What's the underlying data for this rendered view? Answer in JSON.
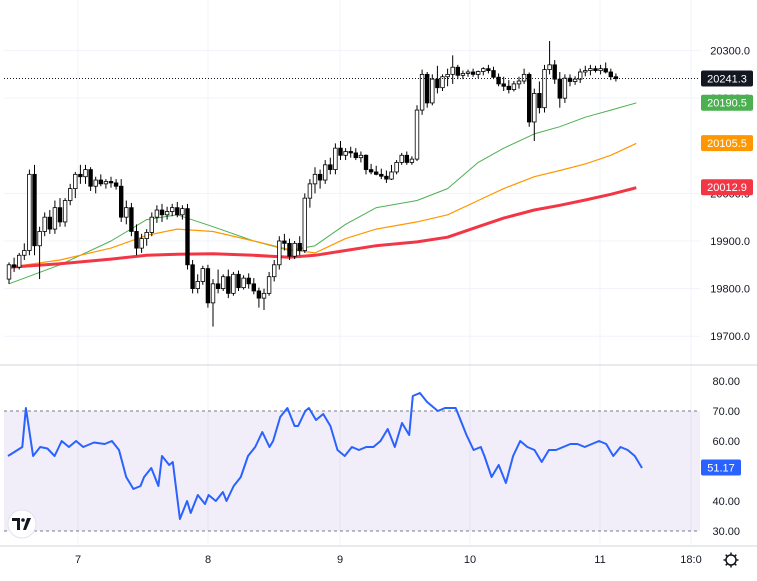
{
  "chart_data": {
    "type": "candlestick",
    "x_ticks": [
      "7",
      "8",
      "9",
      "10",
      "11",
      "18:0"
    ],
    "price_axis": {
      "ticks": [
        "20300.0",
        "20200.0",
        "20000.0",
        "19900.0",
        "19800.0",
        "19700.0"
      ],
      "range": [
        19650,
        20360
      ]
    },
    "last_price": {
      "label": "20241.3",
      "value": 20241.3,
      "color": "#131722"
    },
    "ma_labels": [
      {
        "label": "20190.5",
        "value": 20190.5,
        "color": "#4caf50"
      },
      {
        "label": "20105.5",
        "value": 20105.5,
        "color": "#ff9800"
      },
      {
        "label": "20012.9",
        "value": 20012.9,
        "color": "#f23645"
      }
    ],
    "candles": [
      [
        19820,
        19855,
        19810,
        19850
      ],
      [
        19850,
        19865,
        19835,
        19845
      ],
      [
        19845,
        19875,
        19840,
        19870
      ],
      [
        19870,
        19895,
        19860,
        19880
      ],
      [
        19880,
        20050,
        19870,
        20040
      ],
      [
        20040,
        20060,
        19870,
        19890
      ],
      [
        19890,
        19930,
        19820,
        19920
      ],
      [
        19920,
        19960,
        19910,
        19950
      ],
      [
        19950,
        19965,
        19915,
        19925
      ],
      [
        19925,
        19985,
        19915,
        19970
      ],
      [
        19970,
        19990,
        19930,
        19940
      ],
      [
        19940,
        19990,
        19930,
        19985
      ],
      [
        19985,
        20020,
        19975,
        20010
      ],
      [
        20010,
        20045,
        19990,
        20040
      ],
      [
        20040,
        20060,
        20020,
        20035
      ],
      [
        20035,
        20060,
        20020,
        20050
      ],
      [
        20050,
        20055,
        20005,
        20015
      ],
      [
        20015,
        20035,
        20000,
        20028
      ],
      [
        20028,
        20040,
        20015,
        20020
      ],
      [
        20020,
        20030,
        20010,
        20025
      ],
      [
        20025,
        20035,
        20012,
        20022
      ],
      [
        20022,
        20030,
        20008,
        20015
      ],
      [
        20015,
        20030,
        19940,
        19950
      ],
      [
        19950,
        19985,
        19935,
        19970
      ],
      [
        19970,
        19980,
        19910,
        19920
      ],
      [
        19920,
        19935,
        19870,
        19885
      ],
      [
        19885,
        19915,
        19875,
        19905
      ],
      [
        19905,
        19925,
        19890,
        19918
      ],
      [
        19918,
        19960,
        19910,
        19950
      ],
      [
        19950,
        19975,
        19938,
        19965
      ],
      [
        19965,
        19978,
        19940,
        19955
      ],
      [
        19955,
        19972,
        19945,
        19962
      ],
      [
        19962,
        19978,
        19952,
        19970
      ],
      [
        19970,
        19982,
        19950,
        19955
      ],
      [
        19955,
        19975,
        19945,
        19968
      ],
      [
        19968,
        19978,
        19840,
        19850
      ],
      [
        19850,
        19860,
        19790,
        19800
      ],
      [
        19800,
        19830,
        19790,
        19815
      ],
      [
        19815,
        19848,
        19808,
        19842
      ],
      [
        19842,
        19850,
        19760,
        19770
      ],
      [
        19770,
        19820,
        19720,
        19810
      ],
      [
        19810,
        19840,
        19790,
        19800
      ],
      [
        19800,
        19830,
        19795,
        19825
      ],
      [
        19825,
        19840,
        19780,
        19790
      ],
      [
        19790,
        19835,
        19785,
        19830
      ],
      [
        19830,
        19838,
        19795,
        19802
      ],
      [
        19802,
        19828,
        19798,
        19822
      ],
      [
        19822,
        19832,
        19800,
        19810
      ],
      [
        19810,
        19822,
        19788,
        19795
      ],
      [
        19795,
        19802,
        19760,
        19780
      ],
      [
        19780,
        19800,
        19755,
        19790
      ],
      [
        19790,
        19835,
        19785,
        19825
      ],
      [
        19825,
        19860,
        19815,
        19850
      ],
      [
        19850,
        19910,
        19840,
        19900
      ],
      [
        19900,
        19915,
        19880,
        19895
      ],
      [
        19895,
        19905,
        19860,
        19868
      ],
      [
        19868,
        19900,
        19862,
        19895
      ],
      [
        19895,
        19910,
        19870,
        19880
      ],
      [
        19880,
        20000,
        19875,
        19990
      ],
      [
        19990,
        20030,
        19970,
        20020
      ],
      [
        20020,
        20055,
        20000,
        20040
      ],
      [
        20040,
        20050,
        20010,
        20028
      ],
      [
        20028,
        20070,
        20020,
        20060
      ],
      [
        20060,
        20075,
        20040,
        20050
      ],
      [
        20050,
        20105,
        20040,
        20095
      ],
      [
        20095,
        20110,
        20070,
        20080
      ],
      [
        20080,
        20095,
        20070,
        20088
      ],
      [
        20088,
        20098,
        20075,
        20085
      ],
      [
        20085,
        20095,
        20070,
        20075
      ],
      [
        20075,
        20088,
        20065,
        20080
      ],
      [
        20080,
        20082,
        20040,
        20050
      ],
      [
        20050,
        20062,
        20040,
        20045
      ],
      [
        20045,
        20058,
        20038,
        20040
      ],
      [
        20040,
        20052,
        20030,
        20036
      ],
      [
        20036,
        20048,
        20022,
        20030
      ],
      [
        20030,
        20060,
        20028,
        20045
      ],
      [
        20045,
        20070,
        20040,
        20065
      ],
      [
        20065,
        20085,
        20060,
        20080
      ],
      [
        20080,
        20088,
        20060,
        20065
      ],
      [
        20065,
        20078,
        20060,
        20072
      ],
      [
        20072,
        20185,
        20068,
        20175
      ],
      [
        20175,
        20260,
        20165,
        20250
      ],
      [
        20250,
        20255,
        20180,
        20190
      ],
      [
        20190,
        20250,
        20185,
        20240
      ],
      [
        20240,
        20268,
        20210,
        20222
      ],
      [
        20222,
        20250,
        20215,
        20245
      ],
      [
        20245,
        20262,
        20225,
        20250
      ],
      [
        20250,
        20290,
        20230,
        20265
      ],
      [
        20265,
        20270,
        20240,
        20248
      ],
      [
        20248,
        20258,
        20240,
        20252
      ],
      [
        20252,
        20260,
        20245,
        20255
      ],
      [
        20255,
        20262,
        20245,
        20250
      ],
      [
        20250,
        20258,
        20242,
        20256
      ],
      [
        20256,
        20265,
        20248,
        20262
      ],
      [
        20262,
        20270,
        20252,
        20258
      ],
      [
        20258,
        20266,
        20240,
        20244
      ],
      [
        20244,
        20252,
        20225,
        20230
      ],
      [
        20230,
        20245,
        20215,
        20225
      ],
      [
        20225,
        20238,
        20210,
        20218
      ],
      [
        20218,
        20236,
        20214,
        20230
      ],
      [
        20230,
        20245,
        20220,
        20236
      ],
      [
        20236,
        20262,
        20230,
        20250
      ],
      [
        20250,
        20254,
        20140,
        20150
      ],
      [
        20150,
        20220,
        20110,
        20210
      ],
      [
        20210,
        20235,
        20168,
        20180
      ],
      [
        20180,
        20270,
        20170,
        20260
      ],
      [
        20260,
        20320,
        20250,
        20270
      ],
      [
        20270,
        20280,
        20230,
        20240
      ],
      [
        20240,
        20255,
        20180,
        20200
      ],
      [
        20200,
        20250,
        20190,
        20242
      ],
      [
        20242,
        20250,
        20225,
        20235
      ],
      [
        20235,
        20246,
        20228,
        20240
      ],
      [
        20240,
        20262,
        20232,
        20255
      ],
      [
        20255,
        20268,
        20246,
        20258
      ],
      [
        20258,
        20270,
        20248,
        20262
      ],
      [
        20262,
        20268,
        20254,
        20258
      ],
      [
        20258,
        20270,
        20250,
        20262
      ],
      [
        20262,
        20275,
        20252,
        20255
      ],
      [
        20255,
        20262,
        20238,
        20245
      ],
      [
        20245,
        20252,
        20235,
        20241
      ]
    ],
    "ma_series": [
      {
        "color": "#4caf50",
        "values": [
          [
            0,
            19810
          ],
          [
            10,
            19850
          ],
          [
            20,
            19900
          ],
          [
            27,
            19945
          ],
          [
            33,
            19955
          ],
          [
            40,
            19930
          ],
          [
            48,
            19900
          ],
          [
            55,
            19880
          ],
          [
            60,
            19890
          ],
          [
            66,
            19935
          ],
          [
            72,
            19970
          ],
          [
            80,
            19985
          ],
          [
            86,
            20010
          ],
          [
            92,
            20065
          ],
          [
            97,
            20095
          ],
          [
            103,
            20125
          ],
          [
            108,
            20140
          ],
          [
            113,
            20160
          ],
          [
            118,
            20175
          ],
          [
            123,
            20190
          ]
        ]
      },
      {
        "color": "#ff9800",
        "values": [
          [
            0,
            19845
          ],
          [
            10,
            19860
          ],
          [
            20,
            19885
          ],
          [
            27,
            19912
          ],
          [
            33,
            19925
          ],
          [
            40,
            19920
          ],
          [
            48,
            19900
          ],
          [
            55,
            19882
          ],
          [
            60,
            19875
          ],
          [
            66,
            19905
          ],
          [
            72,
            19925
          ],
          [
            80,
            19940
          ],
          [
            86,
            19955
          ],
          [
            92,
            19985
          ],
          [
            97,
            20010
          ],
          [
            103,
            20035
          ],
          [
            108,
            20048
          ],
          [
            113,
            20062
          ],
          [
            118,
            20080
          ],
          [
            123,
            20105
          ]
        ]
      },
      {
        "color": "#f23645",
        "values": [
          [
            0,
            19845
          ],
          [
            10,
            19852
          ],
          [
            20,
            19862
          ],
          [
            27,
            19870
          ],
          [
            33,
            19872
          ],
          [
            40,
            19873
          ],
          [
            48,
            19870
          ],
          [
            55,
            19866
          ],
          [
            60,
            19870
          ],
          [
            66,
            19880
          ],
          [
            72,
            19890
          ],
          [
            80,
            19898
          ],
          [
            86,
            19908
          ],
          [
            92,
            19930
          ],
          [
            97,
            19948
          ],
          [
            103,
            19965
          ],
          [
            108,
            19975
          ],
          [
            113,
            19986
          ],
          [
            118,
            19998
          ],
          [
            123,
            20012
          ]
        ]
      }
    ],
    "rsi": {
      "ticks": [
        "80.00",
        "70.00",
        "60.00",
        "50.00",
        "40.00",
        "30.00"
      ],
      "range": [
        27,
        83
      ],
      "upper": 70,
      "lower": 30,
      "current_label": "51.17",
      "current": 51.17,
      "color": "#2962ff",
      "values": [
        [
          0,
          55
        ],
        [
          4,
          58
        ],
        [
          5,
          71
        ],
        [
          7,
          55
        ],
        [
          9,
          58
        ],
        [
          11,
          57.5
        ],
        [
          13,
          55
        ],
        [
          15,
          60
        ],
        [
          17,
          58
        ],
        [
          19,
          60
        ],
        [
          21,
          58
        ],
        [
          24,
          59.5
        ],
        [
          27,
          59
        ],
        [
          29,
          60
        ],
        [
          31,
          57
        ],
        [
          33,
          48
        ],
        [
          35,
          44
        ],
        [
          37,
          45
        ],
        [
          38,
          48
        ],
        [
          40,
          51
        ],
        [
          42,
          45
        ],
        [
          43,
          55
        ],
        [
          45,
          52
        ],
        [
          46,
          53
        ],
        [
          48,
          34
        ],
        [
          50,
          40
        ],
        [
          51,
          36
        ],
        [
          53,
          42
        ],
        [
          55,
          39
        ],
        [
          56,
          42
        ],
        [
          58,
          40
        ],
        [
          60,
          43
        ],
        [
          61,
          40
        ],
        [
          63,
          45
        ],
        [
          65,
          48
        ],
        [
          67,
          55
        ],
        [
          69,
          58
        ],
        [
          71,
          63
        ],
        [
          73,
          58
        ],
        [
          74,
          60
        ],
        [
          76,
          68
        ],
        [
          78,
          71
        ],
        [
          80,
          65
        ],
        [
          81,
          65
        ],
        [
          83,
          70
        ],
        [
          84,
          71
        ],
        [
          86,
          67
        ],
        [
          88,
          69
        ],
        [
          90,
          65
        ],
        [
          92,
          57
        ],
        [
          94,
          55
        ],
        [
          96,
          58
        ],
        [
          98,
          57
        ],
        [
          100,
          58
        ],
        [
          102,
          58
        ],
        [
          104,
          60
        ],
        [
          106,
          64
        ],
        [
          108,
          58
        ],
        [
          110,
          66
        ],
        [
          112,
          62
        ],
        [
          113,
          75
        ],
        [
          115,
          76
        ],
        [
          117,
          73
        ],
        [
          118,
          72
        ],
        [
          120,
          70
        ],
        [
          122,
          71
        ],
        [
          125,
          71
        ],
        [
          126,
          68
        ],
        [
          128,
          62
        ],
        [
          130,
          57
        ],
        [
          132,
          58
        ],
        [
          133,
          55
        ],
        [
          135,
          48
        ],
        [
          137,
          52
        ],
        [
          139,
          46
        ],
        [
          141,
          55
        ],
        [
          143,
          60
        ],
        [
          145,
          58
        ],
        [
          147,
          57
        ],
        [
          149,
          53
        ],
        [
          151,
          57
        ],
        [
          153,
          57
        ],
        [
          155,
          58
        ],
        [
          157,
          59
        ],
        [
          159,
          59
        ],
        [
          161,
          58
        ],
        [
          163,
          59
        ],
        [
          165,
          60
        ],
        [
          167,
          59
        ],
        [
          169,
          55
        ],
        [
          171,
          58
        ],
        [
          173,
          57
        ],
        [
          175,
          55
        ],
        [
          177,
          51
        ]
      ]
    }
  }
}
